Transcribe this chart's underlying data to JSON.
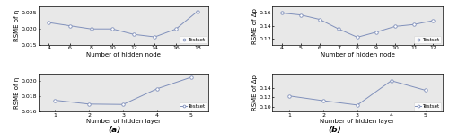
{
  "top_left": {
    "x": [
      4,
      6,
      8,
      10,
      12,
      14,
      16,
      18
    ],
    "y": [
      0.022,
      0.021,
      0.02,
      0.02,
      0.0183,
      0.0175,
      0.02,
      0.0255
    ],
    "xlabel": "Number of hidden node",
    "ylabel": "RSME of η",
    "xlim": [
      3,
      19
    ],
    "ylim": [
      0.015,
      0.027
    ],
    "yticks": [
      0.015,
      0.02,
      0.025
    ],
    "xticks": [
      4,
      6,
      8,
      10,
      12,
      14,
      16,
      18
    ]
  },
  "bottom_left": {
    "x": [
      1,
      2,
      3,
      4,
      5
    ],
    "y": [
      0.0175,
      0.017,
      0.01695,
      0.019,
      0.0205
    ],
    "xlabel": "Number of hidden layer",
    "ylabel": "RSME of η",
    "xlim": [
      0.5,
      5.5
    ],
    "ylim": [
      0.016,
      0.021
    ],
    "yticks": [
      0.016,
      0.018,
      0.02
    ],
    "xticks": [
      1,
      2,
      3,
      4,
      5
    ]
  },
  "top_right": {
    "x": [
      4,
      5,
      6,
      7,
      8,
      9,
      10,
      11,
      12
    ],
    "y": [
      0.16,
      0.157,
      0.15,
      0.135,
      0.122,
      0.13,
      0.139,
      0.142,
      0.148
    ],
    "xlabel": "Number of hidden node",
    "ylabel": "RSME of Δp",
    "xlim": [
      3.5,
      12.5
    ],
    "ylim": [
      0.11,
      0.17
    ],
    "yticks": [
      0.12,
      0.14,
      0.16
    ],
    "xticks": [
      4,
      5,
      6,
      7,
      8,
      9,
      10,
      11,
      12
    ]
  },
  "bottom_right": {
    "x": [
      1,
      2,
      3,
      4,
      5
    ],
    "y": [
      0.123,
      0.113,
      0.104,
      0.155,
      0.135
    ],
    "xlabel": "Number of hidden layer",
    "ylabel": "RSME of Δp",
    "xlim": [
      0.5,
      5.5
    ],
    "ylim": [
      0.09,
      0.17
    ],
    "yticks": [
      0.1,
      0.12,
      0.14
    ],
    "xticks": [
      1,
      2,
      3,
      4,
      5
    ]
  },
  "line_color": "#8090bb",
  "marker": "o",
  "marker_face": "white",
  "marker_edge": "#8090bb",
  "legend_label": "Testset",
  "label_a": "(a)",
  "label_b": "(b)",
  "bg_color": "#e8e8e8",
  "fontsize": 5.0,
  "tick_fontsize": 4.5,
  "legend_fontsize": 4.0
}
